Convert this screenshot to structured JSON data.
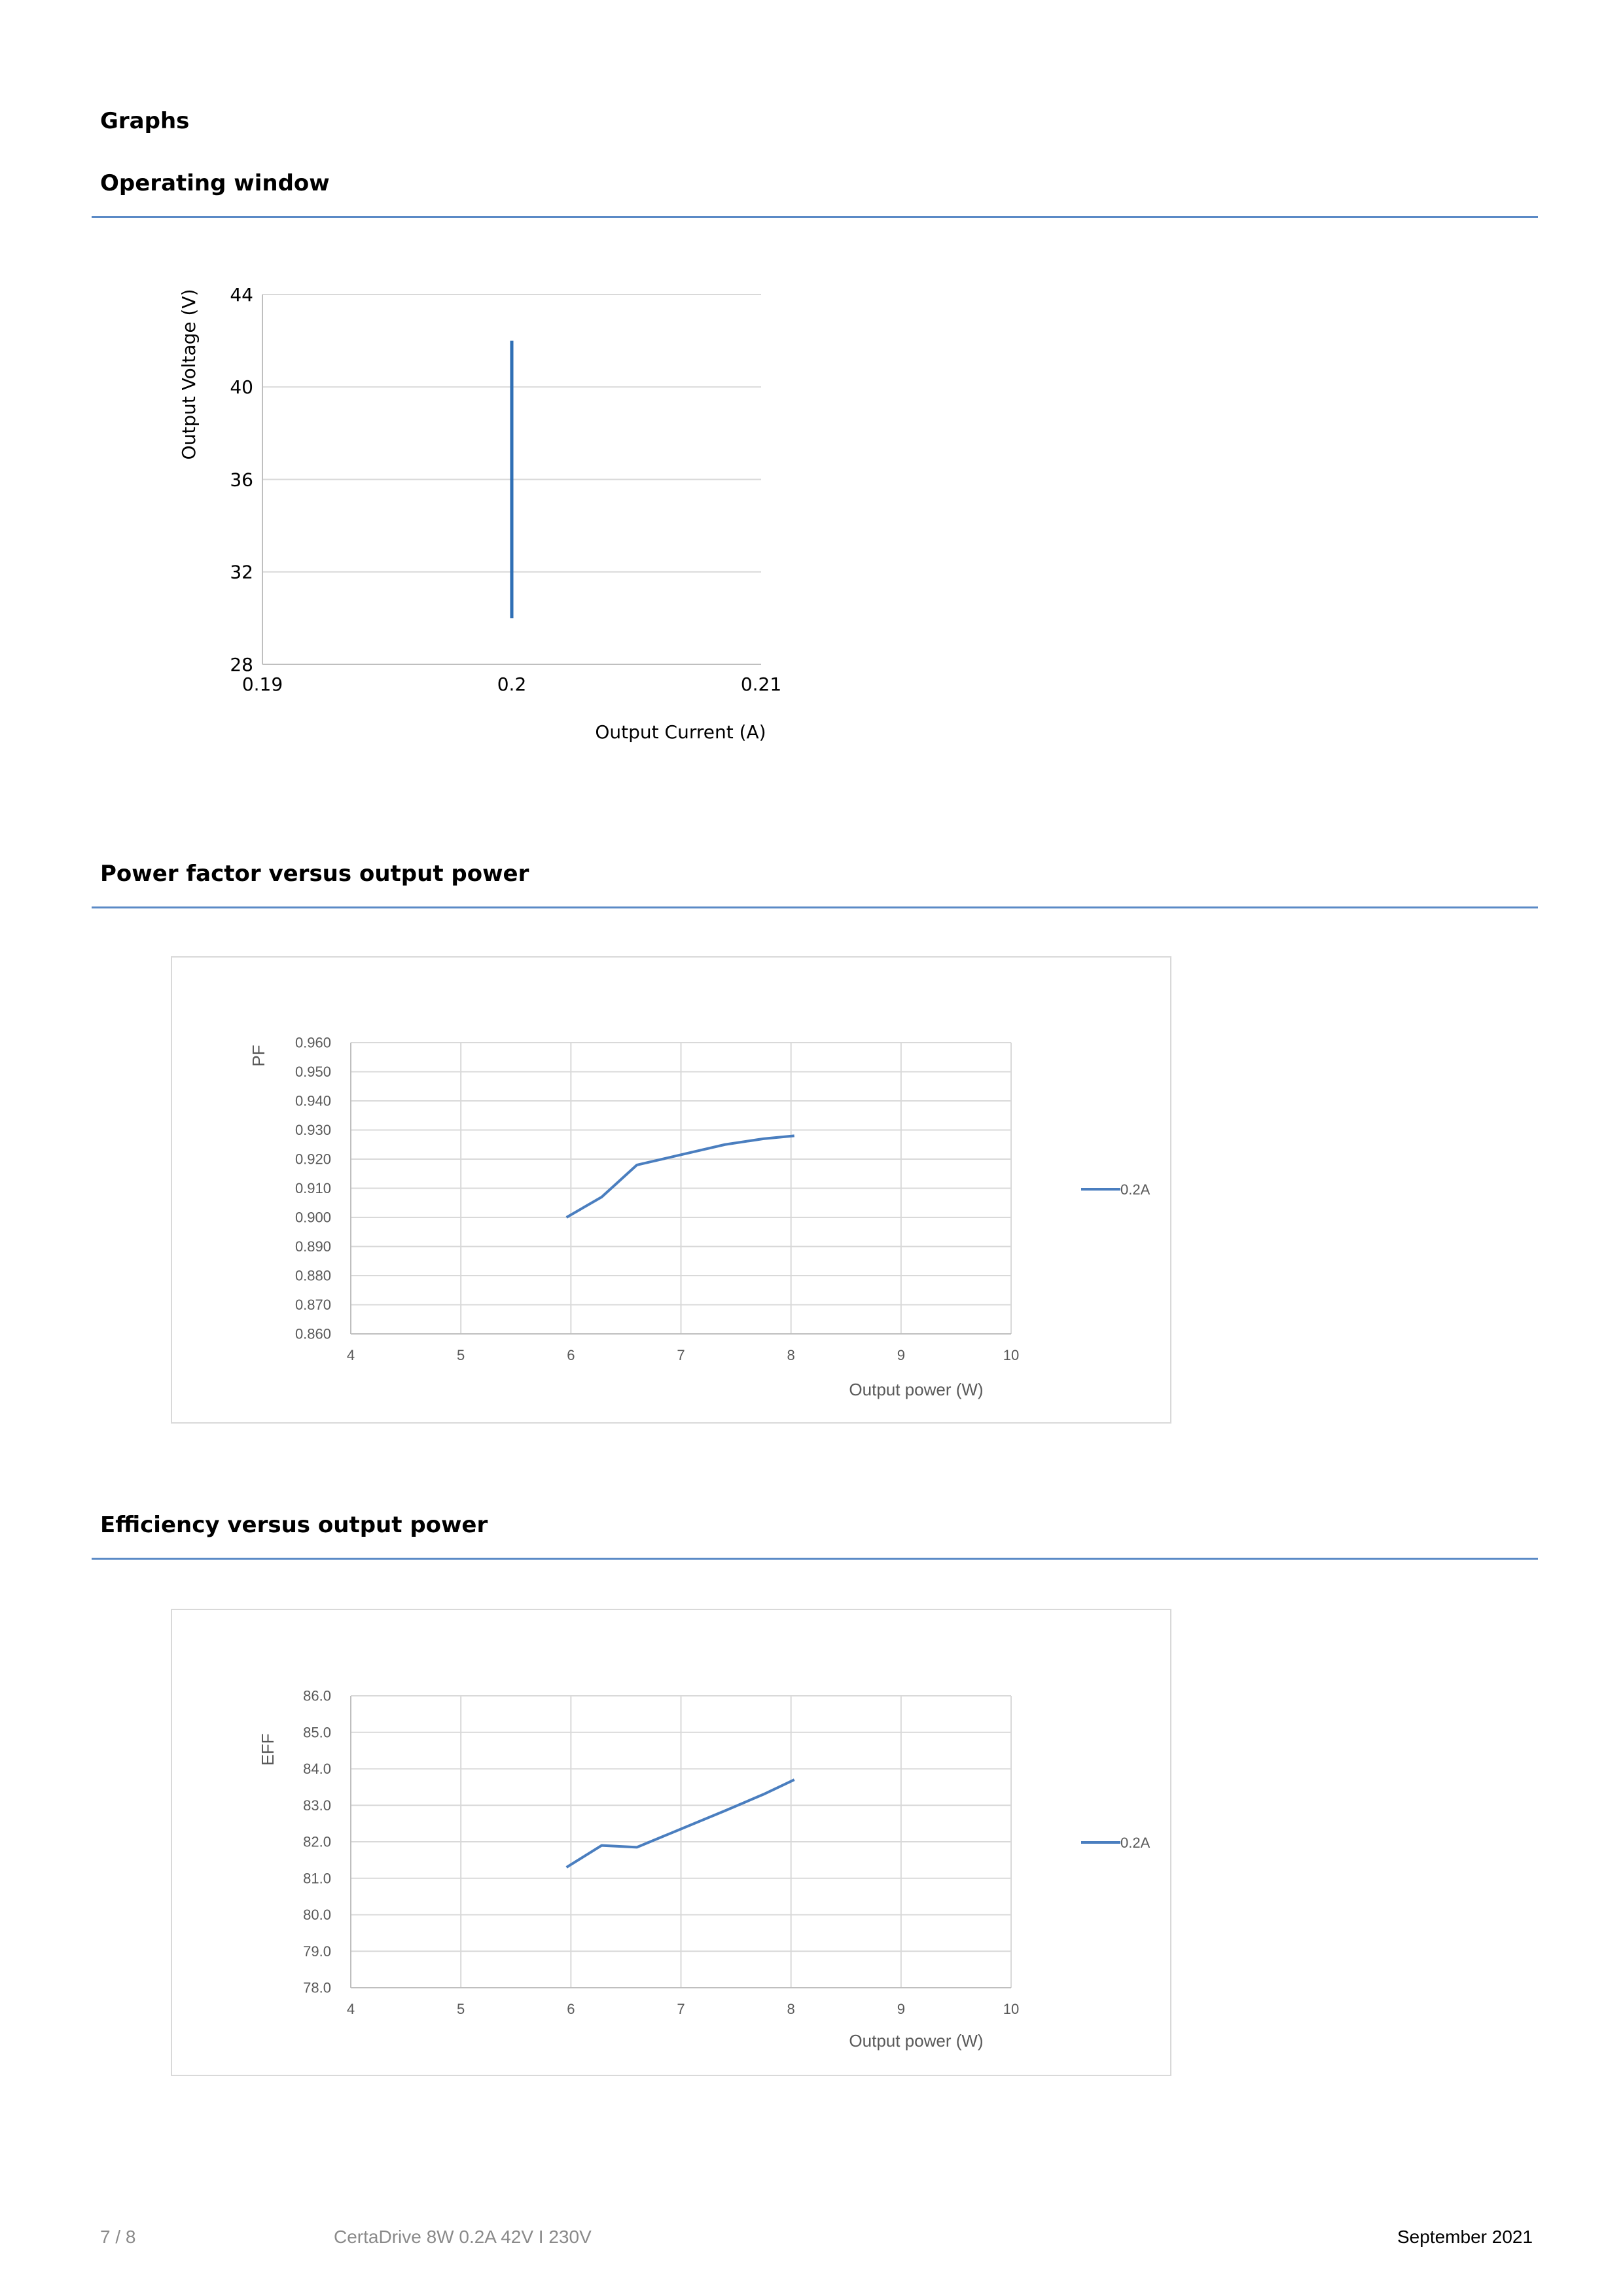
{
  "section_title": "Graphs",
  "sections": [
    {
      "title": "Operating window"
    },
    {
      "title": "Power factor versus output power"
    },
    {
      "title": "Efficiency versus output power"
    }
  ],
  "colors": {
    "accent": "#5b8ac6",
    "series": "#4a7ebf",
    "operating_line": "#2f6fb5",
    "grid": "#d9d9d9"
  },
  "chart_data": [
    {
      "type": "line",
      "title": "",
      "xlabel": "Output Current (A)",
      "ylabel": "Output Voltage (V)",
      "xlim": [
        0.19,
        0.21
      ],
      "ylim": [
        28,
        44
      ],
      "x_ticks": [
        "0.19",
        "0.2",
        "0.21"
      ],
      "y_ticks": [
        "44",
        "40",
        "36",
        "32",
        "28"
      ],
      "grid": "horizontal",
      "series": [
        {
          "x": [
            0.2,
            0.2
          ],
          "y": [
            30,
            42
          ]
        }
      ]
    },
    {
      "type": "line",
      "title": "",
      "xlabel": "Output power (W)",
      "ylabel": "PF",
      "xlim": [
        4,
        10
      ],
      "ylim": [
        0.86,
        0.96
      ],
      "x_ticks": [
        "4",
        "5",
        "6",
        "7",
        "8",
        "9",
        "10"
      ],
      "y_ticks": [
        "0.960",
        "0.950",
        "0.940",
        "0.930",
        "0.920",
        "0.910",
        "0.900",
        "0.890",
        "0.880",
        "0.870",
        "0.860"
      ],
      "grid": "both",
      "legend": "right",
      "series": [
        {
          "name": "0.2A",
          "x": [
            5.96,
            6.28,
            6.6,
            7.0,
            7.4,
            7.75,
            8.03
          ],
          "y": [
            0.9,
            0.907,
            0.918,
            0.9215,
            0.925,
            0.927,
            0.928
          ]
        }
      ]
    },
    {
      "type": "line",
      "title": "",
      "xlabel": "Output power (W)",
      "ylabel": "EFF",
      "xlim": [
        4,
        10
      ],
      "ylim": [
        78,
        86
      ],
      "x_ticks": [
        "4",
        "5",
        "6",
        "7",
        "8",
        "9",
        "10"
      ],
      "y_ticks": [
        "86.0",
        "85.0",
        "84.0",
        "83.0",
        "82.0",
        "81.0",
        "80.0",
        "79.0",
        "78.0"
      ],
      "grid": "both",
      "legend": "right",
      "series": [
        {
          "name": "0.2A",
          "x": [
            5.96,
            6.28,
            6.6,
            7.0,
            7.4,
            7.75,
            8.03
          ],
          "y": [
            81.3,
            81.9,
            81.85,
            82.35,
            82.85,
            83.3,
            83.7
          ]
        }
      ]
    }
  ],
  "footer": {
    "page": "7 / 8",
    "product": "CertaDrive 8W 0.2A 42V I 230V",
    "date": "September 2021"
  }
}
